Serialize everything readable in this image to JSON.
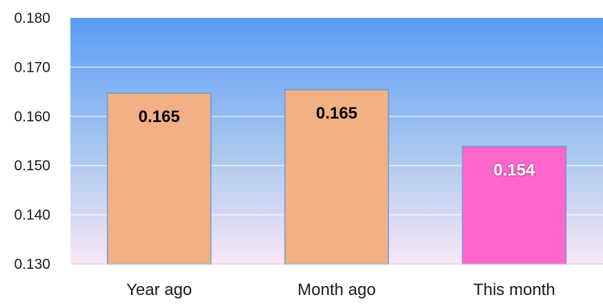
{
  "chart_data": {
    "type": "bar",
    "title": "",
    "xlabel": "",
    "ylabel": "",
    "categories": [
      "Year ago",
      "Month ago",
      "This month"
    ],
    "values": [
      0.1647,
      0.1654,
      0.1539
    ],
    "data_labels": [
      "0.165",
      "0.165",
      "0.154"
    ],
    "ylim": [
      0.13,
      0.18
    ],
    "yticks": [
      "0.130",
      "0.140",
      "0.150",
      "0.160",
      "0.170",
      "0.180"
    ],
    "grid": true,
    "legend": "none",
    "colors": {
      "bar_default": "#f2b084",
      "bar_highlight": "#ff66cc",
      "bar_border": "#6a9ad6",
      "plot_gradient_top": "#5b9cf6",
      "plot_gradient_bottom": "#f9e7f7",
      "gridline": "#ffffff",
      "label_dark": "#000000",
      "label_light": "#ffffff"
    },
    "highlight_index": 2
  }
}
